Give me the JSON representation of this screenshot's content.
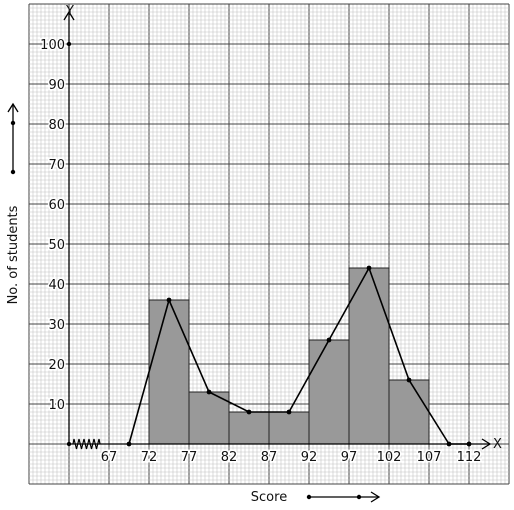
{
  "chart_data": {
    "type": "bar",
    "subtype": "histogram-with-frequency-polygon",
    "xlabel": "Score",
    "ylabel": "No. of students",
    "x_axis_letter": "X",
    "y_axis_letter": "Y",
    "x_ticks": [
      "67",
      "72",
      "77",
      "82",
      "87",
      "92",
      "97",
      "102",
      "107",
      "112"
    ],
    "y_ticks": [
      "10",
      "20",
      "30",
      "40",
      "50",
      "60",
      "70",
      "80",
      "90",
      "100"
    ],
    "xlim": [
      62,
      117
    ],
    "ylim": [
      -10,
      110
    ],
    "axis_break_on_x": true,
    "grid": true,
    "bins": [
      {
        "from": 72,
        "to": 77,
        "value": 36
      },
      {
        "from": 77,
        "to": 82,
        "value": 13
      },
      {
        "from": 82,
        "to": 87,
        "value": 8
      },
      {
        "from": 87,
        "to": 92,
        "value": 8
      },
      {
        "from": 92,
        "to": 97,
        "value": 26
      },
      {
        "from": 97,
        "to": 102,
        "value": 44
      },
      {
        "from": 102,
        "to": 107,
        "value": 16
      }
    ],
    "polygon": {
      "x": [
        69.5,
        74.5,
        79.5,
        84.5,
        89.5,
        94.5,
        99.5,
        104.5,
        109.5,
        112
      ],
      "y": [
        0,
        36,
        13,
        8,
        8,
        26,
        44,
        16,
        0,
        0
      ]
    },
    "colors": {
      "bar": "#999999",
      "line": "#000000",
      "grid": "#aaaaaa"
    }
  }
}
